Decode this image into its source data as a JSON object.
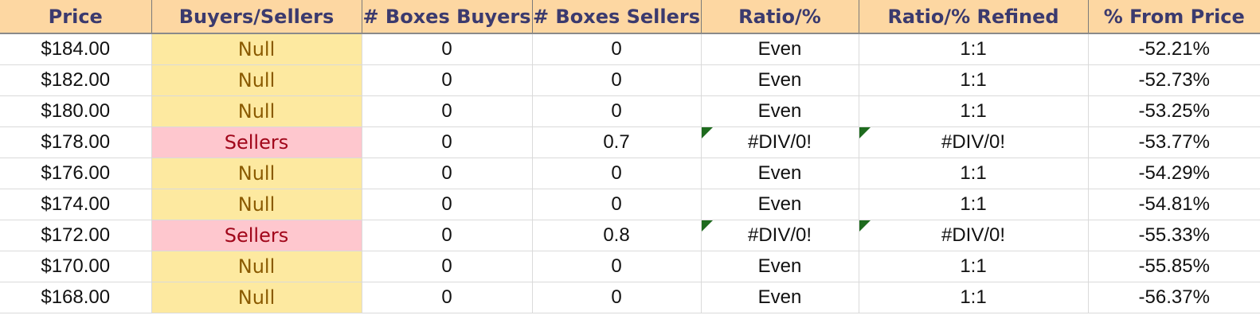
{
  "headers": [
    "Price",
    "Buyers/Sellers",
    "# Boxes Buyers",
    "# Boxes Sellers",
    "Ratio/%",
    "Ratio/% Refined",
    "% From Price"
  ],
  "rows": [
    {
      "price": "$184.00",
      "side": "Null",
      "buyers": "0",
      "sellers": "0",
      "ratio": "Even",
      "refined": "1:1",
      "from_price": "-52.21%",
      "flag": false
    },
    {
      "price": "$182.00",
      "side": "Null",
      "buyers": "0",
      "sellers": "0",
      "ratio": "Even",
      "refined": "1:1",
      "from_price": "-52.73%",
      "flag": false
    },
    {
      "price": "$180.00",
      "side": "Null",
      "buyers": "0",
      "sellers": "0",
      "ratio": "Even",
      "refined": "1:1",
      "from_price": "-53.25%",
      "flag": false
    },
    {
      "price": "$178.00",
      "side": "Sellers",
      "buyers": "0",
      "sellers": "0.7",
      "ratio": "#DIV/0!",
      "refined": "#DIV/0!",
      "from_price": "-53.77%",
      "flag": true
    },
    {
      "price": "$176.00",
      "side": "Null",
      "buyers": "0",
      "sellers": "0",
      "ratio": "Even",
      "refined": "1:1",
      "from_price": "-54.29%",
      "flag": false
    },
    {
      "price": "$174.00",
      "side": "Null",
      "buyers": "0",
      "sellers": "0",
      "ratio": "Even",
      "refined": "1:1",
      "from_price": "-54.81%",
      "flag": false
    },
    {
      "price": "$172.00",
      "side": "Sellers",
      "buyers": "0",
      "sellers": "0.8",
      "ratio": "#DIV/0!",
      "refined": "#DIV/0!",
      "from_price": "-55.33%",
      "flag": true
    },
    {
      "price": "$170.00",
      "side": "Null",
      "buyers": "0",
      "sellers": "0",
      "ratio": "Even",
      "refined": "1:1",
      "from_price": "-55.85%",
      "flag": false
    },
    {
      "price": "$168.00",
      "side": "Null",
      "buyers": "0",
      "sellers": "0",
      "ratio": "Even",
      "refined": "1:1",
      "from_price": "-56.37%",
      "flag": false
    }
  ],
  "colors": {
    "header_bg": "#fdd7a2",
    "header_text": "#3b3a6e",
    "null_bg": "#fde9a0",
    "null_text": "#8a5a00",
    "sellers_bg": "#fec7ce",
    "sellers_text": "#a1061a",
    "error_flag": "#1e6b1e"
  }
}
